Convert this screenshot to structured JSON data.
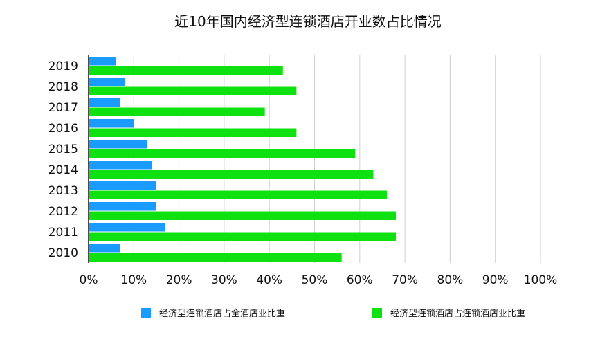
{
  "chart_data": {
    "type": "bar",
    "orientation": "horizontal",
    "title": "近10年国内经济型连锁酒店开业数占比情况",
    "categories": [
      "2019",
      "2018",
      "2017",
      "2016",
      "2015",
      "2014",
      "2013",
      "2012",
      "2011",
      "2010"
    ],
    "series": [
      {
        "name": "经济型连锁酒店占全酒店业比重",
        "color": "#1a9bff",
        "values": [
          6,
          8,
          7,
          10,
          13,
          14,
          15,
          15,
          17,
          7
        ]
      },
      {
        "name": "经济型连锁酒店占连锁酒店业比重",
        "color": "#0fe00f",
        "values": [
          43,
          46,
          39,
          46,
          59,
          63,
          66,
          68,
          68,
          56
        ]
      }
    ],
    "xlim": [
      0,
      100
    ],
    "x_ticks": [
      "0%",
      "10%",
      "20%",
      "30%",
      "40%",
      "50%",
      "60%",
      "70%",
      "80%",
      "90%",
      "100%"
    ],
    "xlabel": "",
    "ylabel": "",
    "grid": true,
    "legend_position": "bottom"
  }
}
